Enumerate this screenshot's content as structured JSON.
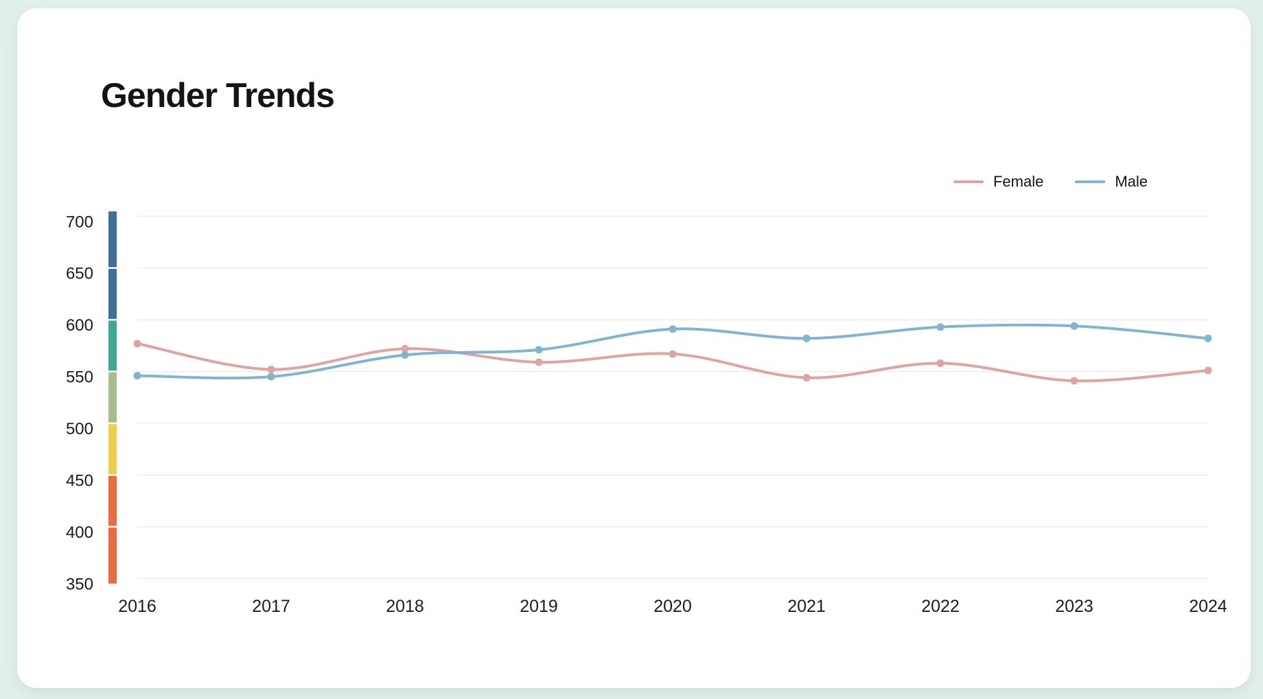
{
  "page": {
    "background_color": "#e2f0ea",
    "card_color": "#ffffff"
  },
  "header": {
    "title": "Gender Trends"
  },
  "legend": [
    {
      "label": "Female",
      "color": "#dda4a1"
    },
    {
      "label": "Male",
      "color": "#7fb5d2"
    }
  ],
  "chart_data": {
    "type": "line",
    "title": "Gender Trends",
    "categories": [
      "2016",
      "2017",
      "2018",
      "2019",
      "2020",
      "2021",
      "2022",
      "2023",
      "2024"
    ],
    "series": [
      {
        "name": "Female",
        "color": "#dda4a1",
        "values": [
          577,
          552,
          572,
          559,
          567,
          544,
          558,
          541,
          551
        ]
      },
      {
        "name": "Male",
        "color": "#7fb5d2",
        "values": [
          546,
          545,
          566,
          571,
          591,
          582,
          593,
          594,
          582
        ]
      }
    ],
    "xlabel": "",
    "ylabel": "",
    "ylim": [
      350,
      700
    ],
    "yticks": [
      350,
      400,
      450,
      500,
      550,
      600,
      650,
      700
    ],
    "grid": "horizontal",
    "grid_color": "#ececec",
    "tick_color": "#1b1b1b",
    "legend_position": "top-right",
    "marker": "dot",
    "colorbar_segments": [
      {
        "range": [
          650,
          700
        ],
        "color": "#3d6f9b"
      },
      {
        "range": [
          600,
          650
        ],
        "color": "#3d6f9b"
      },
      {
        "range": [
          550,
          600
        ],
        "color": "#3ea991"
      },
      {
        "range": [
          500,
          550
        ],
        "color": "#a5be89"
      },
      {
        "range": [
          450,
          500
        ],
        "color": "#edce49"
      },
      {
        "range": [
          400,
          450
        ],
        "color": "#ec6b3e"
      },
      {
        "range": [
          350,
          400
        ],
        "color": "#ec6b3e"
      }
    ]
  }
}
